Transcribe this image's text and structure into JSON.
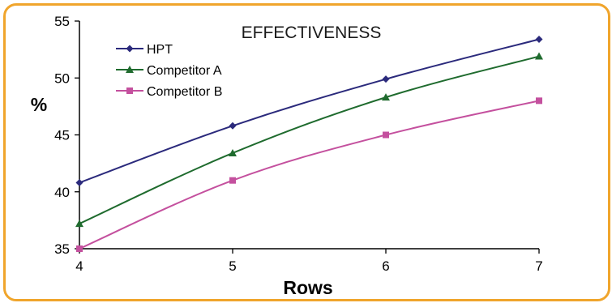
{
  "chart_data": {
    "type": "line",
    "title": "EFFECTIVENESS",
    "xlabel": "Rows",
    "ylabel": "%",
    "x": [
      4,
      5,
      6,
      7
    ],
    "xlim": [
      4,
      7
    ],
    "ylim": [
      35,
      55
    ],
    "yticks": [
      "35",
      "40",
      "45",
      "50",
      "55"
    ],
    "xticks": [
      "4",
      "5",
      "6",
      "7"
    ],
    "grid": false,
    "legend_position": "top-left",
    "series": [
      {
        "name": "HPT",
        "color": "#2b2a7c",
        "marker": "diamond",
        "values": [
          40.8,
          45.8,
          49.9,
          53.4
        ]
      },
      {
        "name": "Competitor A",
        "color": "#1f6b2e",
        "marker": "triangle",
        "values": [
          37.2,
          43.4,
          48.3,
          51.9
        ]
      },
      {
        "name": "Competitor B",
        "color": "#c4509e",
        "marker": "square",
        "values": [
          35.0,
          41.0,
          45.0,
          48.0
        ]
      }
    ]
  }
}
